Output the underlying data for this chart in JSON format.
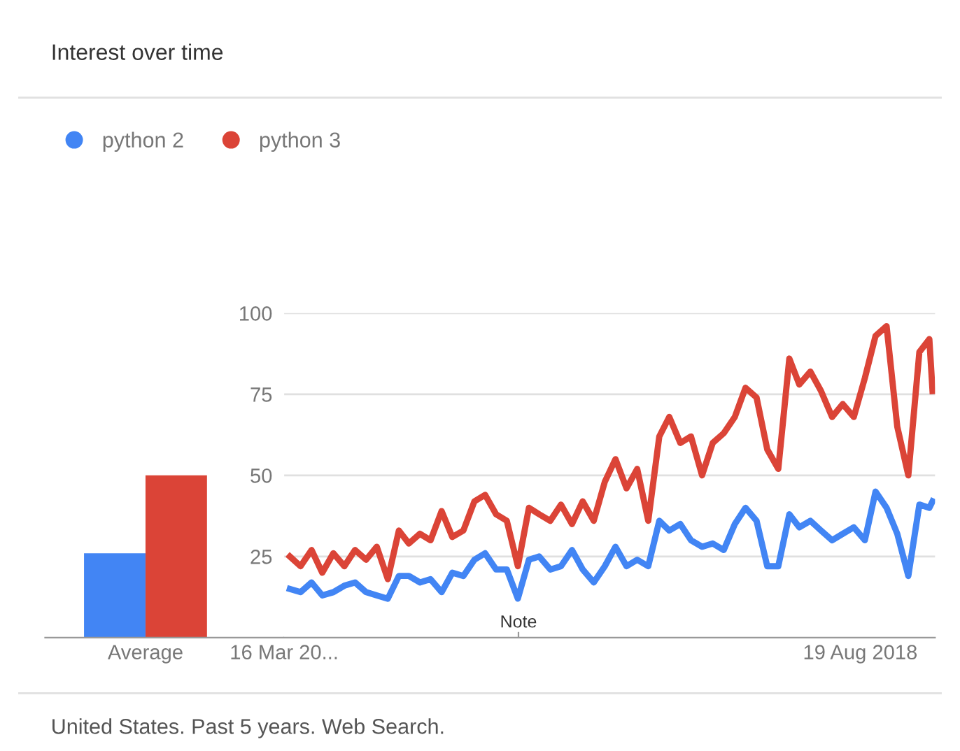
{
  "chart_data": [
    {
      "type": "bar",
      "title": "Interest over time",
      "categories": [
        "Average"
      ],
      "ylim": [
        0,
        100
      ],
      "tick_labels": "x",
      "grid": false,
      "legend": false,
      "series": [
        {
          "color": "#4285f4",
          "values": [
            26
          ]
        },
        {
          "color": "#db4437",
          "values": [
            50
          ]
        }
      ]
    },
    {
      "type": "line",
      "legend": "top left",
      "grid": "y",
      "marker": "none",
      "line_style": "solid",
      "x": [
        "2014-04-01",
        "2014-05-01",
        "2014-06-01",
        "2014-07-01",
        "2014-08-01",
        "2014-09-01",
        "2014-10-01",
        "2014-11-01",
        "2014-12-01",
        "2015-01-01",
        "2015-02-01",
        "2015-03-01",
        "2015-04-01",
        "2015-05-01",
        "2015-06-01",
        "2015-07-01",
        "2015-08-01",
        "2015-09-01",
        "2015-10-01",
        "2015-11-01",
        "2015-12-01",
        "2016-01-01",
        "2016-02-01",
        "2016-03-01",
        "2016-04-01",
        "2016-05-01",
        "2016-06-01",
        "2016-07-01",
        "2016-08-01",
        "2016-09-01",
        "2016-10-01",
        "2016-11-01",
        "2016-12-01",
        "2017-01-01",
        "2017-02-01",
        "2017-03-01",
        "2017-04-01",
        "2017-05-01",
        "2017-06-01",
        "2017-07-01",
        "2017-08-01",
        "2017-09-01",
        "2017-10-01",
        "2017-11-01",
        "2017-12-01",
        "2018-01-01",
        "2018-02-01",
        "2018-03-01",
        "2018-04-01",
        "2018-05-01",
        "2018-06-01",
        "2018-07-01",
        "2018-08-01",
        "2018-09-01",
        "2018-10-01",
        "2018-11-01",
        "2018-12-01",
        "2019-01-01",
        "2019-02-01",
        "2019-03-01",
        "2019-03-10"
      ],
      "xlim": [
        "2014-03-16",
        "2019-03-17"
      ],
      "xticks": [
        {
          "value": "2014-03-16",
          "label": "16 Mar 20..."
        },
        {
          "value": "2018-08-19",
          "label": "19 Aug 2018"
        }
      ],
      "ylim": [
        0,
        100
      ],
      "yticks": [
        25,
        50,
        75,
        100
      ],
      "series": [
        {
          "name": "python 2",
          "color": "#4285f4",
          "values": [
            15,
            14,
            17,
            13,
            14,
            16,
            17,
            14,
            13,
            12,
            19,
            19,
            17,
            18,
            14,
            20,
            19,
            24,
            26,
            21,
            21,
            12,
            24,
            25,
            21,
            22,
            27,
            21,
            17,
            22,
            28,
            22,
            24,
            22,
            36,
            33,
            35,
            30,
            28,
            29,
            27,
            35,
            40,
            36,
            22,
            22,
            38,
            34,
            36,
            33,
            30,
            32,
            34,
            30,
            45,
            40,
            32,
            19,
            41,
            40,
            42
          ]
        },
        {
          "name": "python 3",
          "color": "#db4437",
          "values": [
            25,
            22,
            27,
            20,
            26,
            22,
            27,
            24,
            28,
            18,
            33,
            29,
            32,
            30,
            39,
            31,
            33,
            42,
            44,
            38,
            36,
            22,
            40,
            38,
            36,
            41,
            35,
            42,
            36,
            48,
            55,
            46,
            52,
            36,
            62,
            68,
            60,
            62,
            50,
            60,
            63,
            68,
            77,
            74,
            58,
            52,
            86,
            78,
            82,
            76,
            68,
            72,
            68,
            80,
            93,
            96,
            65,
            50,
            88,
            92,
            76
          ]
        }
      ],
      "annotations": [
        "Note",
        "United States. Past 5 years. Web Search."
      ]
    }
  ]
}
